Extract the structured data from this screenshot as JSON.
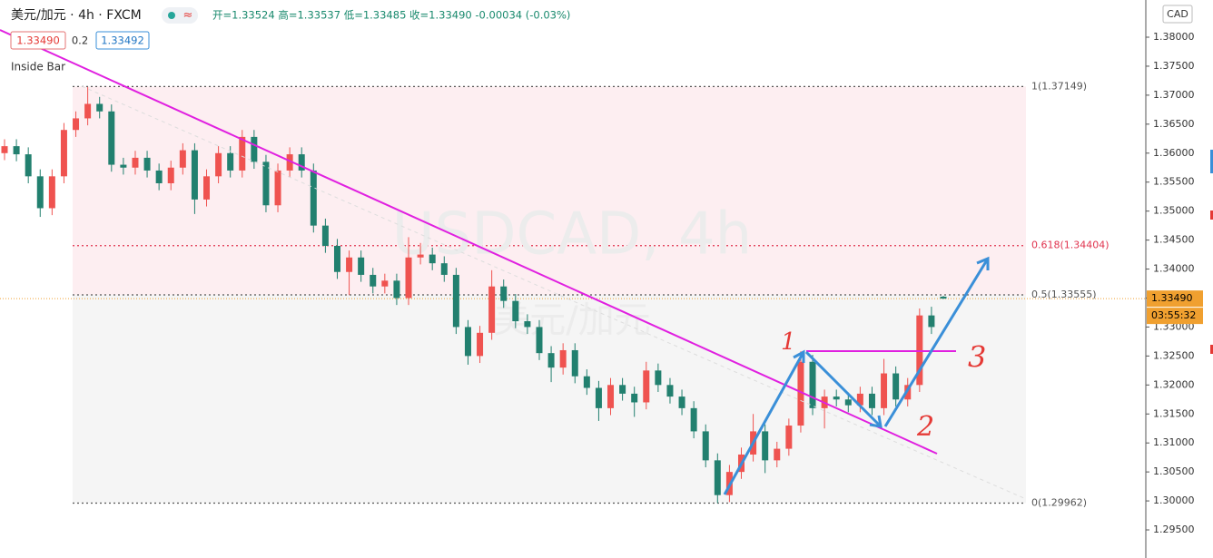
{
  "header": {
    "symbol": "美元/加元 · 4h · FXCM",
    "ohlc": "开=1.33524 高=1.33537 低=1.33485 收=1.33490 -0.00034 (-0.03%)",
    "bid": "1.33490",
    "spread": "0.2",
    "ask": "1.33492",
    "indicator": "Inside Bar"
  },
  "watermark": {
    "line1": "USDCAD, 4h",
    "line2": "美元/加元"
  },
  "annotations": {
    "a1": "1",
    "a2": "2",
    "a3": "3"
  },
  "chart_data": {
    "type": "candlestick",
    "currency": "CAD",
    "last_price": {
      "value": 1.3349,
      "label": "1.33490"
    },
    "countdown": "03:55:32",
    "up_color": "#ef5350",
    "down_color": "#22806f",
    "ylim": [
      1.29015,
      1.38642
    ],
    "yticks": [
      {
        "value": 1.295,
        "label": "1.29500"
      },
      {
        "value": 1.3,
        "label": "1.30000"
      },
      {
        "value": 1.305,
        "label": "1.30500"
      },
      {
        "value": 1.31,
        "label": "1.31000"
      },
      {
        "value": 1.315,
        "label": "1.31500"
      },
      {
        "value": 1.32,
        "label": "1.32000"
      },
      {
        "value": 1.325,
        "label": "1.32500"
      },
      {
        "value": 1.33,
        "label": "1.33000"
      },
      {
        "value": 1.335,
        "label": "1.33500"
      },
      {
        "value": 1.34,
        "label": "1.34000"
      },
      {
        "value": 1.345,
        "label": "1.34500"
      },
      {
        "value": 1.35,
        "label": "1.35000"
      },
      {
        "value": 1.355,
        "label": "1.35500"
      },
      {
        "value": 1.36,
        "label": "1.36000"
      },
      {
        "value": 1.365,
        "label": "1.36500"
      },
      {
        "value": 1.37,
        "label": "1.37000"
      },
      {
        "value": 1.375,
        "label": "1.37500"
      },
      {
        "value": 1.38,
        "label": "1.38000"
      }
    ],
    "fib_levels": [
      {
        "value": 1.37149,
        "label": "1(1.37149)",
        "color": "#555"
      },
      {
        "value": 1.34404,
        "label": "0.618(1.34404)",
        "color": "#e0334e"
      },
      {
        "value": 1.33555,
        "label": "0.5(1.33555)",
        "color": "#555"
      },
      {
        "value": 1.29962,
        "label": "0(1.29962)",
        "color": "#555"
      }
    ],
    "open": [
      1.36,
      1.3612,
      1.3598,
      1.356,
      1.3505,
      1.356,
      1.364,
      1.366,
      1.3685,
      1.3672,
      1.358,
      1.3575,
      1.3592,
      1.357,
      1.3548,
      1.3575,
      1.3605,
      1.352,
      1.356,
      1.36,
      1.357,
      1.3628,
      1.3585,
      1.351,
      1.357,
      1.3598,
      1.357,
      1.3475,
      1.344,
      1.3395,
      1.342,
      1.339,
      1.337,
      1.338,
      1.335,
      1.342,
      1.3425,
      1.341,
      1.339,
      1.33,
      1.325,
      1.329,
      1.337,
      1.3345,
      1.331,
      1.33,
      1.3255,
      1.323,
      1.326,
      1.3215,
      1.3195,
      1.316,
      1.32,
      1.3185,
      1.317,
      1.3225,
      1.32,
      1.318,
      1.316,
      1.312,
      1.307,
      1.301,
      1.305,
      1.308,
      1.312,
      1.307,
      1.309,
      1.313,
      1.324,
      1.316,
      1.318,
      1.3175,
      1.3165,
      1.3185,
      1.316,
      1.322,
      1.3175,
      1.32,
      1.332,
      1.33524
    ],
    "high": [
      1.3624,
      1.3624,
      1.361,
      1.3572,
      1.3572,
      1.3652,
      1.3672,
      1.3714,
      1.3697,
      1.3684,
      1.3592,
      1.3604,
      1.3604,
      1.3582,
      1.3587,
      1.3617,
      1.3617,
      1.3572,
      1.3612,
      1.3612,
      1.364,
      1.364,
      1.3597,
      1.3582,
      1.361,
      1.361,
      1.3582,
      1.3487,
      1.3452,
      1.3432,
      1.3432,
      1.3402,
      1.3392,
      1.3392,
      1.3455,
      1.3445,
      1.3437,
      1.3422,
      1.3402,
      1.3312,
      1.3302,
      1.3398,
      1.3382,
      1.3357,
      1.3322,
      1.3312,
      1.3267,
      1.3272,
      1.3272,
      1.3227,
      1.3207,
      1.3212,
      1.3212,
      1.3197,
      1.324,
      1.3237,
      1.3212,
      1.3192,
      1.3172,
      1.3132,
      1.3082,
      1.3062,
      1.3092,
      1.315,
      1.3132,
      1.3102,
      1.3142,
      1.3258,
      1.3252,
      1.3192,
      1.3192,
      1.3187,
      1.3197,
      1.3197,
      1.3245,
      1.3232,
      1.3212,
      1.3332,
      1.3335,
      1.33537
    ],
    "low": [
      1.3588,
      1.3586,
      1.3548,
      1.349,
      1.3493,
      1.3548,
      1.3628,
      1.3648,
      1.366,
      1.3568,
      1.3563,
      1.3563,
      1.3558,
      1.3536,
      1.3536,
      1.3563,
      1.3495,
      1.3508,
      1.3548,
      1.3558,
      1.3558,
      1.3573,
      1.3498,
      1.3498,
      1.3558,
      1.3558,
      1.3463,
      1.3428,
      1.3383,
      1.3355,
      1.3378,
      1.3358,
      1.3358,
      1.3338,
      1.3338,
      1.3408,
      1.3398,
      1.3378,
      1.3288,
      1.3235,
      1.3238,
      1.3278,
      1.3333,
      1.3298,
      1.3288,
      1.3243,
      1.3205,
      1.3218,
      1.3203,
      1.3183,
      1.3138,
      1.3148,
      1.3173,
      1.3145,
      1.3158,
      1.3188,
      1.3168,
      1.3148,
      1.3108,
      1.3058,
      1.2996,
      1.2998,
      1.3038,
      1.3068,
      1.3048,
      1.3058,
      1.3078,
      1.3118,
      1.3148,
      1.3125,
      1.3163,
      1.3153,
      1.3153,
      1.3148,
      1.3148,
      1.3163,
      1.3163,
      1.3188,
      1.3288,
      1.33485
    ],
    "close": [
      1.3612,
      1.3598,
      1.356,
      1.3505,
      1.356,
      1.364,
      1.366,
      1.3685,
      1.3672,
      1.358,
      1.3575,
      1.3592,
      1.357,
      1.3548,
      1.3575,
      1.3605,
      1.352,
      1.356,
      1.36,
      1.357,
      1.3628,
      1.3585,
      1.351,
      1.357,
      1.3598,
      1.357,
      1.3475,
      1.344,
      1.3395,
      1.342,
      1.339,
      1.337,
      1.338,
      1.335,
      1.342,
      1.3425,
      1.341,
      1.339,
      1.33,
      1.325,
      1.329,
      1.337,
      1.3345,
      1.331,
      1.33,
      1.3255,
      1.323,
      1.326,
      1.3215,
      1.3195,
      1.316,
      1.32,
      1.3185,
      1.317,
      1.3225,
      1.32,
      1.318,
      1.316,
      1.312,
      1.307,
      1.301,
      1.305,
      1.308,
      1.312,
      1.307,
      1.309,
      1.313,
      1.324,
      1.316,
      1.318,
      1.3175,
      1.3165,
      1.3185,
      1.316,
      1.322,
      1.3175,
      1.32,
      1.332,
      1.33,
      1.3349
    ]
  }
}
